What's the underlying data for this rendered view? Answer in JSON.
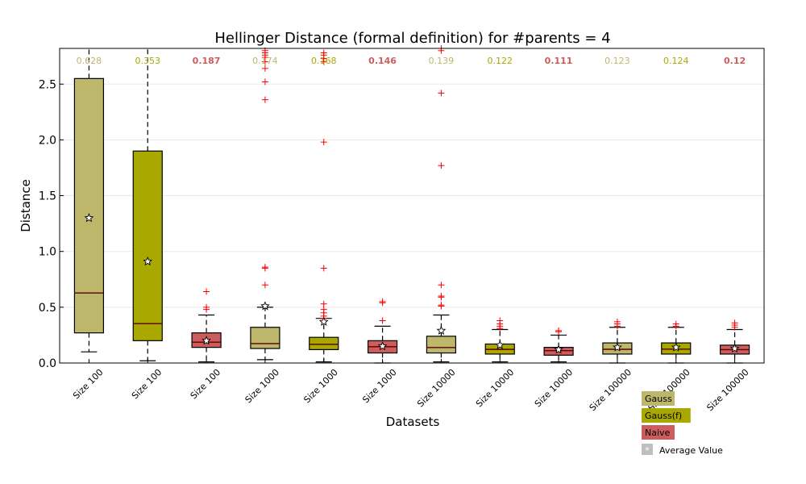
{
  "chart_data": {
    "type": "boxplot",
    "title": "Hellinger Distance (formal definition) for #parents = 4",
    "xlabel": "Datasets",
    "ylabel": "Distance",
    "ylim": [
      0,
      2.82
    ],
    "yticks": [
      "0.0",
      "0.5",
      "1.0",
      "1.5",
      "2.0",
      "2.5"
    ],
    "grid": "horizontal",
    "colors": {
      "Gauss": "#bdb76b",
      "Gauss(f)": "#a8a800",
      "Naive": "#cd5c5c",
      "outlier": "#ff0000"
    },
    "categories": [
      "Size 100",
      "Size 100",
      "Size 100",
      "Size 1000",
      "Size 1000",
      "Size 1000",
      "Size 10000",
      "Size 10000",
      "Size 10000",
      "Size 100000",
      "Size 100000",
      "Size 100000"
    ],
    "boxes": [
      {
        "series": "Gauss",
        "label_value": "0.628",
        "whislo": 0.1,
        "q1": 0.27,
        "med": 0.628,
        "q3": 2.55,
        "whishi": 2.82,
        "mean": 1.3,
        "fliers": []
      },
      {
        "series": "Gauss(f)",
        "label_value": "0.353",
        "whislo": 0.02,
        "q1": 0.2,
        "med": 0.353,
        "q3": 1.9,
        "whishi": 2.82,
        "mean": 0.91,
        "fliers": []
      },
      {
        "series": "Naive",
        "label_value": "0.187",
        "whislo": 0.01,
        "q1": 0.14,
        "med": 0.187,
        "q3": 0.27,
        "whishi": 0.43,
        "mean": 0.2,
        "fliers": [
          0.48,
          0.5,
          0.64
        ]
      },
      {
        "series": "Gauss",
        "label_value": "0.174",
        "whislo": 0.03,
        "q1": 0.13,
        "med": 0.174,
        "q3": 0.32,
        "whishi": 0.5,
        "mean": 0.51,
        "fliers": [
          0.7,
          0.85,
          0.86,
          2.36,
          2.52,
          2.64,
          2.7,
          2.74,
          2.76,
          2.78,
          2.8
        ]
      },
      {
        "series": "Gauss(f)",
        "label_value": "0.168",
        "whislo": 0.01,
        "q1": 0.12,
        "med": 0.168,
        "q3": 0.23,
        "whishi": 0.4,
        "mean": 0.37,
        "fliers": [
          0.4,
          0.42,
          0.45,
          0.48,
          0.53,
          0.85,
          1.98,
          2.7,
          2.73,
          2.76,
          2.78
        ]
      },
      {
        "series": "Naive",
        "label_value": "0.146",
        "whislo": 0.0,
        "q1": 0.09,
        "med": 0.146,
        "q3": 0.2,
        "whishi": 0.33,
        "mean": 0.15,
        "fliers": [
          0.38,
          0.54,
          0.55
        ]
      },
      {
        "series": "Gauss",
        "label_value": "0.139",
        "whislo": 0.01,
        "q1": 0.09,
        "med": 0.139,
        "q3": 0.24,
        "whishi": 0.43,
        "mean": 0.29,
        "fliers": [
          0.51,
          0.52,
          0.59,
          0.6,
          0.7,
          1.77,
          2.42,
          2.8,
          2.82
        ]
      },
      {
        "series": "Gauss(f)",
        "label_value": "0.122",
        "whislo": 0.01,
        "q1": 0.08,
        "med": 0.122,
        "q3": 0.17,
        "whishi": 0.3,
        "mean": 0.16,
        "fliers": [
          0.31,
          0.33,
          0.35,
          0.38
        ]
      },
      {
        "series": "Naive",
        "label_value": "0.111",
        "whislo": 0.01,
        "q1": 0.07,
        "med": 0.111,
        "q3": 0.14,
        "whishi": 0.25,
        "mean": 0.12,
        "fliers": [
          0.28,
          0.29
        ]
      },
      {
        "series": "Gauss",
        "label_value": "0.123",
        "whislo": 0.0,
        "q1": 0.08,
        "med": 0.123,
        "q3": 0.18,
        "whishi": 0.32,
        "mean": 0.14,
        "fliers": [
          0.33,
          0.35,
          0.37
        ]
      },
      {
        "series": "Gauss(f)",
        "label_value": "0.124",
        "whislo": 0.0,
        "q1": 0.08,
        "med": 0.124,
        "q3": 0.18,
        "whishi": 0.32,
        "mean": 0.14,
        "fliers": [
          0.33,
          0.35
        ]
      },
      {
        "series": "Naive",
        "label_value": "0.12",
        "whislo": 0.0,
        "q1": 0.08,
        "med": 0.12,
        "q3": 0.16,
        "whishi": 0.3,
        "mean": 0.13,
        "fliers": [
          0.32,
          0.34,
          0.36
        ]
      }
    ],
    "legend": {
      "placement": "bottom-right",
      "entries": [
        {
          "label": "Gauss",
          "series": "Gauss"
        },
        {
          "label": "Gauss(f)",
          "series": "Gauss(f)"
        },
        {
          "label": "Naive",
          "series": "Naive"
        },
        {
          "label": "Average Value",
          "series": "mean-marker"
        }
      ]
    }
  }
}
